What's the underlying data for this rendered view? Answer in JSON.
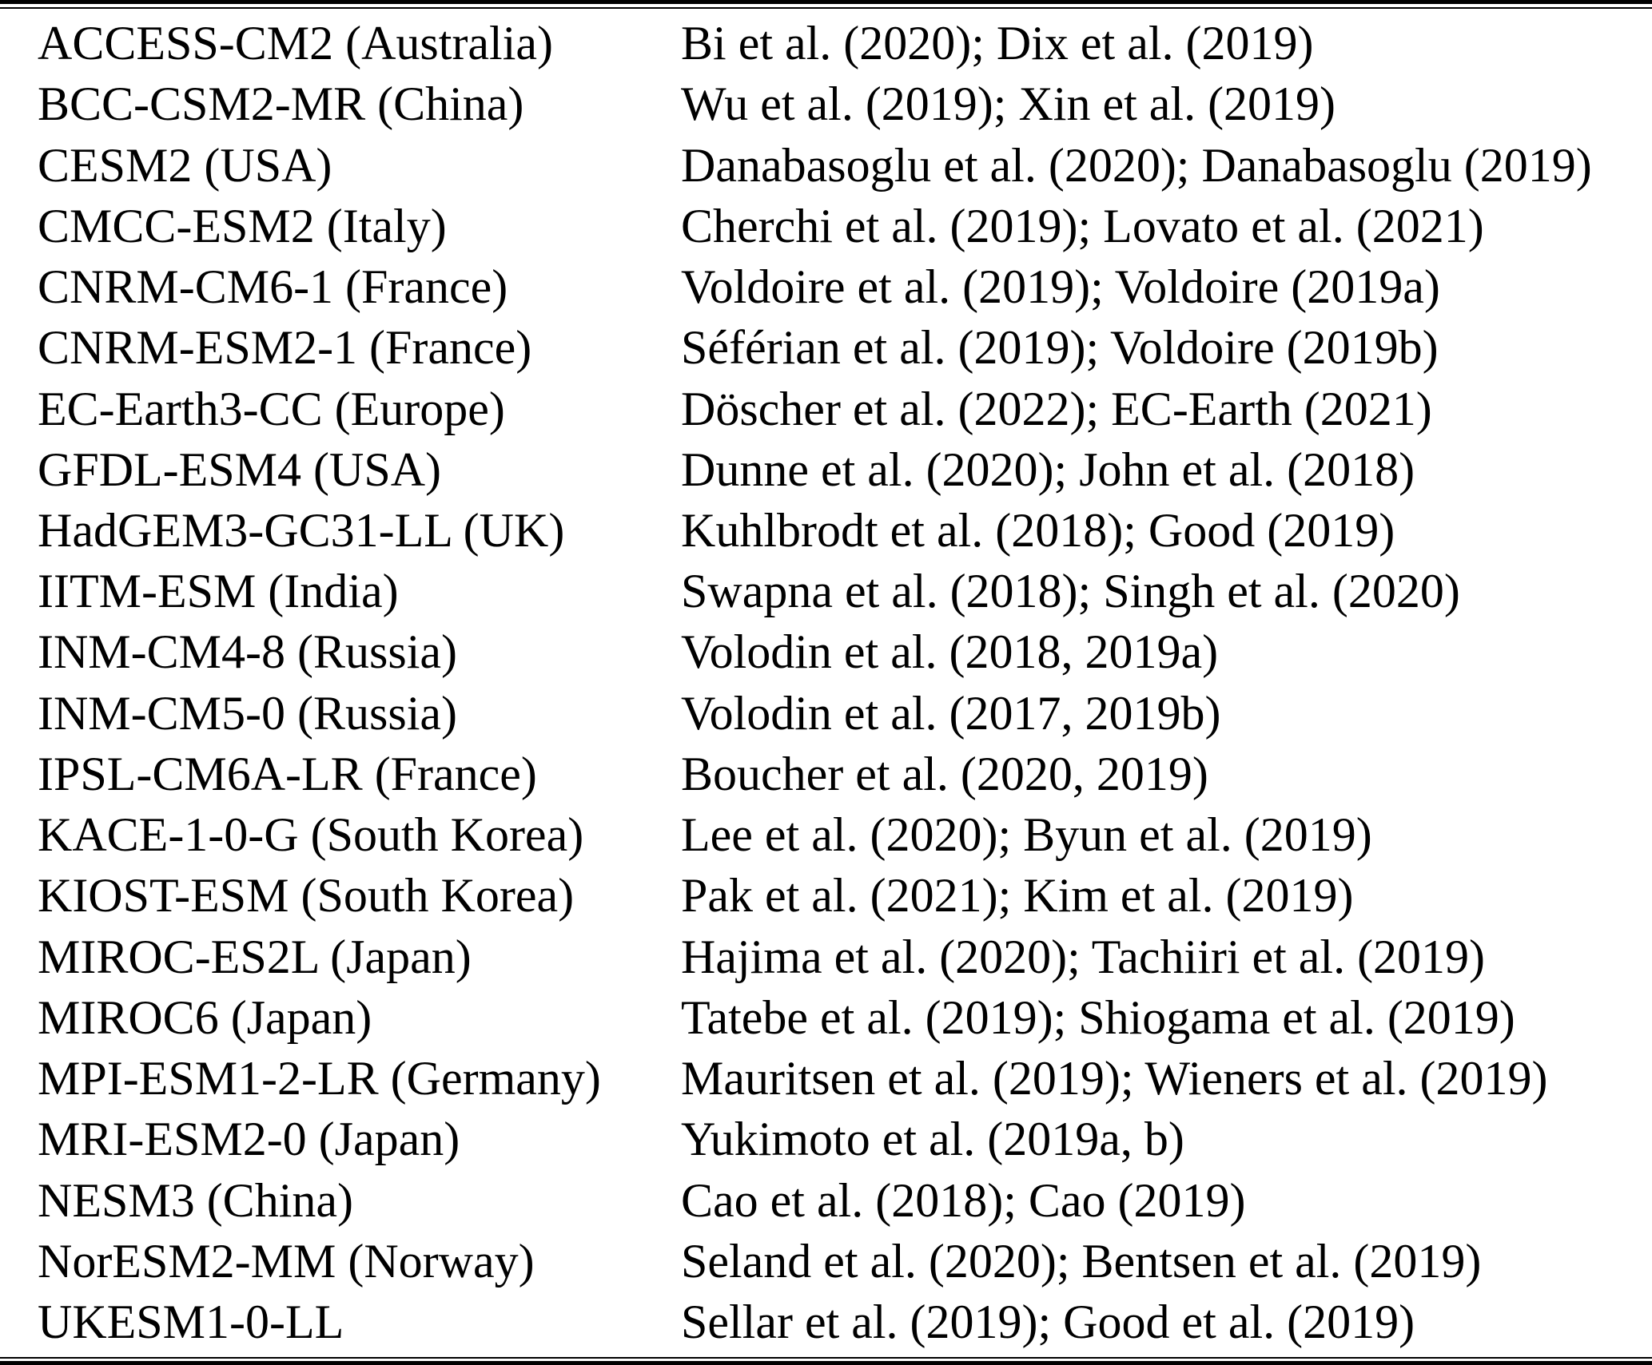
{
  "colors": {
    "background": "#ffffff",
    "text": "#000000",
    "rule": "#000000"
  },
  "table": {
    "columns": [
      "model",
      "references"
    ],
    "rows": [
      {
        "model": "ACCESS-CM2 (Australia)",
        "references": "Bi et al. (2020); Dix et al. (2019)"
      },
      {
        "model": "BCC-CSM2-MR (China)",
        "references": "Wu et al. (2019); Xin et al. (2019)"
      },
      {
        "model": "CESM2 (USA)",
        "references": "Danabasoglu et al. (2020); Danabasoglu (2019)"
      },
      {
        "model": "CMCC-ESM2 (Italy)",
        "references": "Cherchi et al. (2019); Lovato et al. (2021)"
      },
      {
        "model": "CNRM-CM6-1 (France)",
        "references": "Voldoire et al. (2019); Voldoire (2019a)"
      },
      {
        "model": "CNRM-ESM2-1 (France)",
        "references": "Séférian et al. (2019); Voldoire (2019b)"
      },
      {
        "model": "EC-Earth3-CC (Europe)",
        "references": "Döscher et al. (2022); EC-Earth (2021)"
      },
      {
        "model": "GFDL-ESM4 (USA)",
        "references": "Dunne et al. (2020); John et al. (2018)"
      },
      {
        "model": "HadGEM3-GC31-LL (UK)",
        "references": "Kuhlbrodt et al. (2018); Good (2019)"
      },
      {
        "model": "IITM-ESM (India)",
        "references": "Swapna et al. (2018); Singh et al. (2020)"
      },
      {
        "model": "INM-CM4-8 (Russia)",
        "references": "Volodin et al. (2018, 2019a)"
      },
      {
        "model": "INM-CM5-0 (Russia)",
        "references": "Volodin et al. (2017, 2019b)"
      },
      {
        "model": "IPSL-CM6A-LR (France)",
        "references": "Boucher et al. (2020, 2019)"
      },
      {
        "model": "KACE-1-0-G (South Korea)",
        "references": "Lee et al. (2020); Byun et al. (2019)"
      },
      {
        "model": "KIOST-ESM (South Korea)",
        "references": "Pak et al. (2021); Kim et al. (2019)"
      },
      {
        "model": "MIROC-ES2L (Japan)",
        "references": "Hajima et al. (2020); Tachiiri et al. (2019)"
      },
      {
        "model": "MIROC6 (Japan)",
        "references": "Tatebe et al. (2019); Shiogama et al. (2019)"
      },
      {
        "model": "MPI-ESM1-2-LR (Germany)",
        "references": "Mauritsen et al. (2019); Wieners et al. (2019)"
      },
      {
        "model": "MRI-ESM2-0 (Japan)",
        "references": "Yukimoto et al. (2019a, b)"
      },
      {
        "model": "NESM3 (China)",
        "references": "Cao et al. (2018); Cao (2019)"
      },
      {
        "model": "NorESM2-MM (Norway)",
        "references": "Seland et al. (2020); Bentsen et al. (2019)"
      },
      {
        "model": "UKESM1-0-LL",
        "references": "Sellar et al. (2019); Good et al. (2019)"
      }
    ]
  }
}
